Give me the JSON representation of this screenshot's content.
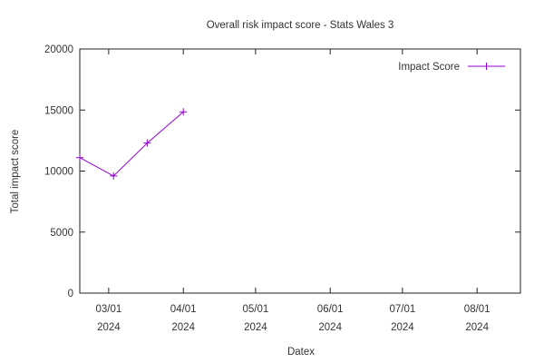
{
  "chart_data": {
    "type": "line",
    "title": "Overall risk impact score - Stats Wales 3",
    "xlabel": "Datex",
    "ylabel": "Total impact score",
    "x_ticks": [
      {
        "date": "2024-03-01",
        "label_line1": "03/01",
        "label_line2": "2024"
      },
      {
        "date": "2024-04-01",
        "label_line1": "04/01",
        "label_line2": "2024"
      },
      {
        "date": "2024-05-01",
        "label_line1": "05/01",
        "label_line2": "2024"
      },
      {
        "date": "2024-06-01",
        "label_line1": "06/01",
        "label_line2": "2024"
      },
      {
        "date": "2024-07-01",
        "label_line1": "07/01",
        "label_line2": "2024"
      },
      {
        "date": "2024-08-01",
        "label_line1": "08/01",
        "label_line2": "2024"
      }
    ],
    "xlim": [
      "2024-02-18",
      "2024-08-19"
    ],
    "y_ticks": [
      0,
      5000,
      10000,
      15000,
      20000
    ],
    "ylim": [
      0,
      20000
    ],
    "grid": false,
    "legend_position": "top-right",
    "series": [
      {
        "name": "Impact Score",
        "color": "#9400d3",
        "marker": "plus",
        "x": [
          "2024-02-18",
          "2024-03-03",
          "2024-03-17",
          "2024-04-01"
        ],
        "y": [
          11100,
          9600,
          12300,
          14850
        ]
      }
    ]
  }
}
